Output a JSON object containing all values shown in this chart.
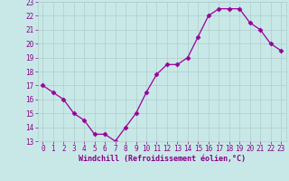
{
  "x": [
    0,
    1,
    2,
    3,
    4,
    5,
    6,
    7,
    8,
    9,
    10,
    11,
    12,
    13,
    14,
    15,
    16,
    17,
    18,
    19,
    20,
    21,
    22,
    23
  ],
  "y": [
    17.0,
    16.5,
    16.0,
    15.0,
    14.5,
    13.5,
    13.5,
    13.0,
    14.0,
    15.0,
    16.5,
    17.8,
    18.5,
    18.5,
    19.0,
    20.5,
    22.0,
    22.5,
    22.5,
    22.5,
    21.5,
    21.0,
    20.0,
    19.5
  ],
  "line_color": "#990099",
  "marker": "D",
  "marker_size": 2.5,
  "bg_color": "#c8e8e8",
  "grid_color": "#b0cccc",
  "xlabel": "Windchill (Refroidissement éolien,°C)",
  "tick_color": "#880088",
  "ylim": [
    13,
    23
  ],
  "xlim_min": -0.5,
  "xlim_max": 23.5,
  "yticks": [
    13,
    14,
    15,
    16,
    17,
    18,
    19,
    20,
    21,
    22,
    23
  ],
  "xticks": [
    0,
    1,
    2,
    3,
    4,
    5,
    6,
    7,
    8,
    9,
    10,
    11,
    12,
    13,
    14,
    15,
    16,
    17,
    18,
    19,
    20,
    21,
    22,
    23
  ],
  "xtick_labels": [
    "0",
    "1",
    "2",
    "3",
    "4",
    "5",
    "6",
    "7",
    "8",
    "9",
    "10",
    "11",
    "12",
    "13",
    "14",
    "15",
    "16",
    "17",
    "18",
    "19",
    "20",
    "21",
    "22",
    "23"
  ]
}
